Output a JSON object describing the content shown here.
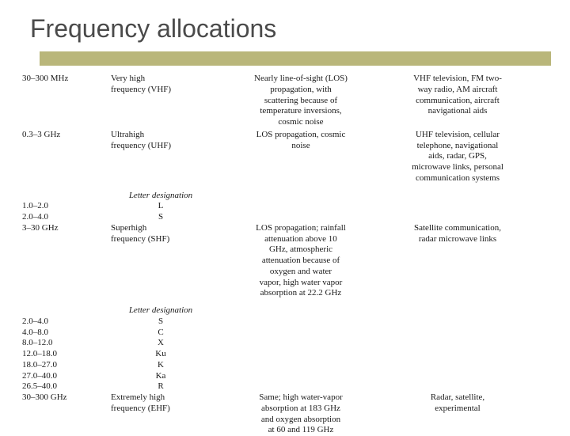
{
  "title": "Frequency allocations",
  "accent_color": "#b9b67a",
  "rows": {
    "r1": {
      "freq": "30–300 MHz",
      "band": "Very high\nfrequency (VHF)",
      "prop": "Nearly line-of-sight (LOS)\npropagation, with\nscattering because of\ntemperature inversions,\ncosmic noise",
      "app": "VHF television, FM two-\nway radio, AM aircraft\ncommunication, aircraft\nnavigational aids"
    },
    "r2": {
      "freq": "0.3–3 GHz",
      "band": "Ultrahigh\nfrequency (UHF)",
      "prop": "LOS propagation, cosmic\nnoise",
      "app": "UHF television, cellular\ntelephone, navigational\naids, radar, GPS,\nmicrowave links, personal\ncommunication systems"
    },
    "letters1_header": "Letter designation",
    "letters1": [
      {
        "r": "1.0–2.0",
        "l": "L"
      },
      {
        "r": "2.0–4.0",
        "l": "S"
      }
    ],
    "r3": {
      "freq": "3–30 GHz",
      "band": "Superhigh\nfrequency (SHF)",
      "prop": "LOS propagation; rainfall\nattenuation above 10\nGHz, atmospheric\nattenuation because of\noxygen and water\nvapor, high water vapor\nabsorption at 22.2 GHz",
      "app": "Satellite communication,\nradar microwave links"
    },
    "letters2_header": "Letter designation",
    "letters2": [
      {
        "r": "2.0–4.0",
        "l": "S"
      },
      {
        "r": "4.0–8.0",
        "l": "C"
      },
      {
        "r": "8.0–12.0",
        "l": "X"
      },
      {
        "r": "12.0–18.0",
        "l": "Ku"
      },
      {
        "r": "18.0–27.0",
        "l": "K"
      },
      {
        "r": "27.0–40.0",
        "l": "Ka"
      },
      {
        "r": "26.5–40.0",
        "l": "R"
      }
    ],
    "r4": {
      "freq": "30–300 GHz",
      "band": "Extremely high\nfrequency (EHF)",
      "prop": "Same; high water-vapor\nabsorption at 183 GHz\nand oxygen absorption\nat 60 and 119 GHz",
      "app": "Radar, satellite,\nexperimental"
    }
  }
}
